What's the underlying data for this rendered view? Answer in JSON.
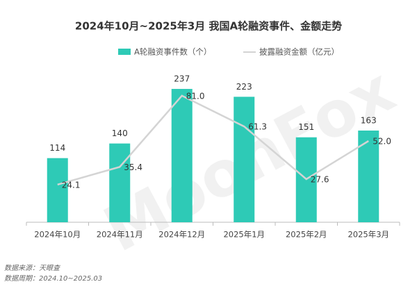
{
  "chart_data": {
    "type": "bar",
    "title": "2024年10月~2025年3月 我国A轮融资事件、金额走势",
    "categories": [
      "2024年10月",
      "2024年11月",
      "2024年12月",
      "2025年1月",
      "2025年2月",
      "2025年3月"
    ],
    "series": [
      {
        "name": "A轮融资事件数（个）",
        "color": "#2ecab6",
        "type": "bar",
        "values": [
          114,
          140,
          237,
          223,
          151,
          163
        ]
      },
      {
        "name": "披露融资金额（亿元）",
        "color": "#d4d4d4",
        "type": "line",
        "axis": "y2",
        "values": [
          24.1,
          35.4,
          81.0,
          61.3,
          27.6,
          52.0
        ],
        "value_labels": [
          "24.1",
          "35.4",
          "81.0",
          "61.3",
          "27.6",
          "52.0"
        ]
      }
    ],
    "ylim": [
      0,
      300
    ],
    "y2lim": [
      0,
      108
    ],
    "legend": "top",
    "watermark": "MoonFox",
    "source": "数据来源：天眼查",
    "period": "数据周期：2024.10~2025.03"
  }
}
